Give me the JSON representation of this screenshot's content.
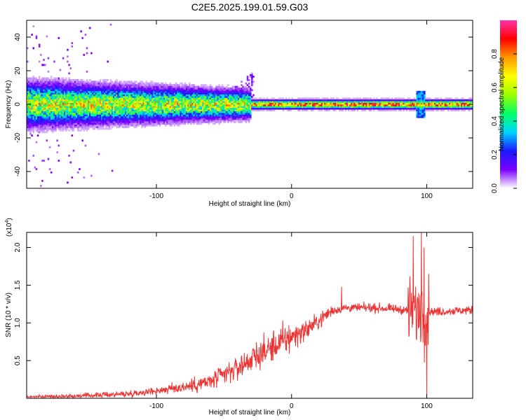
{
  "figure": {
    "title": "C2E5.2025.199.01.59.G03"
  },
  "chart_data": [
    {
      "type": "heatmap",
      "xlabel": "Height of straight line (km)",
      "ylabel": "Frequency (Hz)",
      "xlim": [
        -196,
        134
      ],
      "ylim": [
        -50,
        50
      ],
      "xticks": [
        -100,
        0,
        100
      ],
      "yticks": [
        -40,
        -20,
        0,
        20,
        40
      ],
      "colorbar": {
        "label": "Normalized spectral amplitude",
        "range": [
          0.0,
          1.0
        ],
        "ticks": [
          0.0,
          0.2,
          0.4,
          0.6,
          0.8
        ],
        "tick_labels": [
          "0.0",
          "0.2",
          "0.4",
          "0.6",
          "0.8"
        ],
        "colors": [
          "#ffffff",
          "#7a00ff",
          "#1a1aff",
          "#00d5ff",
          "#00ff66",
          "#9cff00",
          "#ffff00",
          "#ff9900",
          "#ff0000",
          "#ff33aa"
        ]
      },
      "features": {
        "noise_band_center_hz": 0,
        "noise_band_halfwidth_start_hz": 10,
        "narrow_band_from_km": -30,
        "narrow_band_halfwidth_hz": 2,
        "rising_fringe_km_range": [
          -60,
          -28
        ],
        "rising_fringe_max_hz": 20,
        "disturbance_at_km": 95
      }
    },
    {
      "type": "line",
      "xlabel": "Height of straight line (km)",
      "ylabel": "SNR (10 * v/v)",
      "y_scale_label": "(x10",
      "y_scale_exp": "4",
      "y_scale_close": ")",
      "xlim": [
        -196,
        134
      ],
      "ylim": [
        0,
        2.2
      ],
      "xticks": [
        -100,
        0,
        100
      ],
      "yticks": [
        0.5,
        1.0,
        1.5,
        2.0
      ],
      "ytick_labels": [
        "0.5",
        "1.0",
        "1.5",
        "2.0"
      ],
      "color": "#ee3333",
      "trend": {
        "x": [
          -196,
          -160,
          -120,
          -100,
          -80,
          -60,
          -40,
          -30,
          -20,
          -10,
          0,
          10,
          20,
          25,
          30,
          40,
          60,
          80,
          90,
          100,
          110,
          120,
          134
        ],
        "y": [
          0.02,
          0.03,
          0.06,
          0.1,
          0.15,
          0.22,
          0.4,
          0.52,
          0.62,
          0.72,
          0.82,
          0.9,
          1.02,
          1.1,
          1.16,
          1.2,
          1.2,
          1.18,
          1.15,
          1.15,
          1.15,
          1.16,
          1.17
        ]
      },
      "spikes": [
        {
          "x": 90,
          "y": 2.15
        },
        {
          "x": 96,
          "y": 2.2
        },
        {
          "x": 98,
          "y": 2.0
        },
        {
          "x": 100,
          "y": 0.05
        },
        {
          "x": 37,
          "y": 1.48
        }
      ]
    }
  ]
}
